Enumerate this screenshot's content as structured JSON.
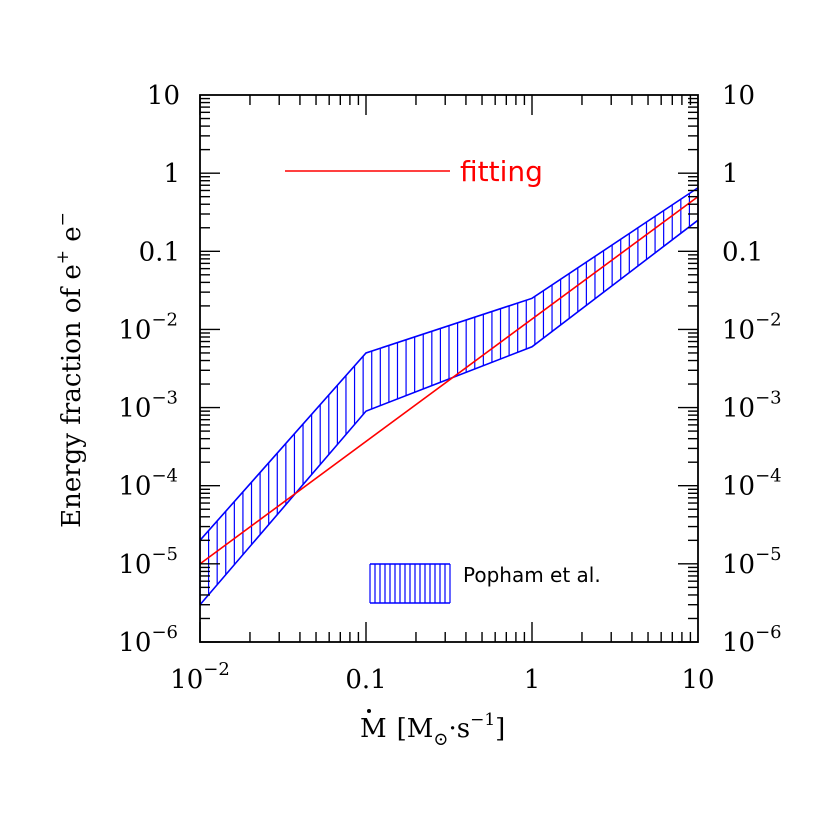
{
  "chart_data": {
    "type": "line",
    "x_scale": "log",
    "y_scale": "log",
    "xlim": [
      0.01,
      10
    ],
    "ylim": [
      1e-06,
      10
    ],
    "x_ticks": [
      {
        "value": 0.01,
        "mantissa": "10",
        "exponent": "−2"
      },
      {
        "value": 0.1,
        "mantissa": "0.1",
        "exponent": ""
      },
      {
        "value": 1,
        "mantissa": "1",
        "exponent": ""
      },
      {
        "value": 10,
        "mantissa": "10",
        "exponent": ""
      }
    ],
    "y_ticks": [
      {
        "value": 10,
        "mantissa": "10",
        "exponent": ""
      },
      {
        "value": 1,
        "mantissa": "1",
        "exponent": ""
      },
      {
        "value": 0.1,
        "mantissa": "0.1",
        "exponent": ""
      },
      {
        "value": 0.01,
        "mantissa": "10",
        "exponent": "−2"
      },
      {
        "value": 0.001,
        "mantissa": "10",
        "exponent": "−3"
      },
      {
        "value": 0.0001,
        "mantissa": "10",
        "exponent": "−4"
      },
      {
        "value": 1e-05,
        "mantissa": "10",
        "exponent": "−5"
      },
      {
        "value": 1e-06,
        "mantissa": "10",
        "exponent": "−6"
      }
    ],
    "xlabel": "Ṁ [M⊙·s−1]",
    "ylabel": "Energy fraction of e+ e−",
    "series": [
      {
        "name": "fitting",
        "color": "#ff0000",
        "x": [
          0.01,
          10
        ],
        "y": [
          1e-05,
          0.5
        ]
      },
      {
        "name": "Popham et al.",
        "color": "#0000ff",
        "style": "band-vertical-hatch",
        "x": [
          0.01,
          0.1,
          1,
          10
        ],
        "y_upper": [
          2e-05,
          0.005,
          0.025,
          0.65
        ],
        "y_lower": [
          3e-06,
          0.0009,
          0.006,
          0.25
        ]
      }
    ],
    "legend": {
      "fitting_label": "fitting",
      "band_label": "Popham et al."
    },
    "grid": false
  }
}
